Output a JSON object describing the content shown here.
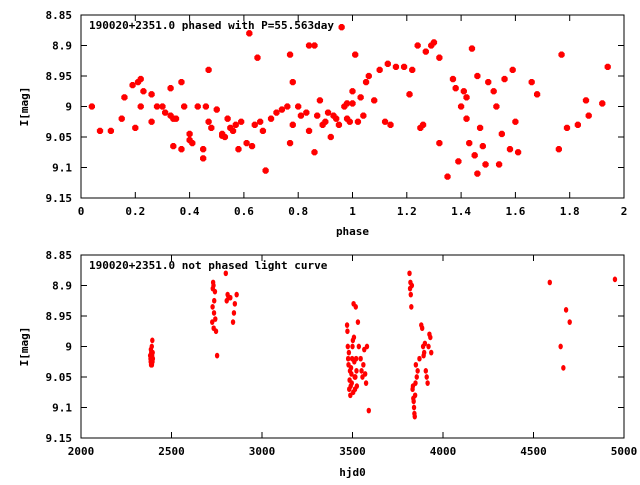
{
  "chart_data": [
    {
      "type": "scatter",
      "title": "190020+2351.0 phased with P=55.563day",
      "xlabel": "phase",
      "ylabel": "I[mag]",
      "xlim": [
        0,
        2
      ],
      "ylim": [
        9.15,
        8.85
      ],
      "y_inverted": true,
      "x_ticks": [
        "0",
        "0.2",
        "0.4",
        "0.6",
        "0.8",
        "1",
        "1.2",
        "1.4",
        "1.6",
        "1.8",
        "2"
      ],
      "y_ticks": [
        "8.85",
        "8.9",
        "8.95",
        "9",
        "9.05",
        "9.1",
        "9.15"
      ],
      "marker_color": "#ff0000",
      "grid": false,
      "points": [
        [
          0.04,
          9.0
        ],
        [
          0.07,
          9.04
        ],
        [
          0.11,
          9.04
        ],
        [
          0.15,
          9.02
        ],
        [
          0.16,
          8.985
        ],
        [
          0.19,
          8.965
        ],
        [
          0.2,
          9.035
        ],
        [
          0.21,
          8.96
        ],
        [
          0.22,
          8.955
        ],
        [
          0.22,
          9.0
        ],
        [
          0.23,
          8.975
        ],
        [
          0.26,
          8.98
        ],
        [
          0.26,
          9.025
        ],
        [
          0.28,
          9.0
        ],
        [
          0.3,
          9.0
        ],
        [
          0.31,
          9.01
        ],
        [
          0.33,
          8.97
        ],
        [
          0.33,
          9.015
        ],
        [
          0.34,
          9.02
        ],
        [
          0.34,
          9.065
        ],
        [
          0.35,
          9.02
        ],
        [
          0.37,
          8.96
        ],
        [
          0.37,
          9.07
        ],
        [
          0.38,
          9.0
        ],
        [
          0.4,
          9.045
        ],
        [
          0.4,
          9.055
        ],
        [
          0.41,
          9.06
        ],
        [
          0.43,
          9.0
        ],
        [
          0.45,
          9.07
        ],
        [
          0.45,
          9.085
        ],
        [
          0.46,
          9.0
        ],
        [
          0.47,
          8.94
        ],
        [
          0.47,
          9.025
        ],
        [
          0.48,
          9.035
        ],
        [
          0.5,
          9.005
        ],
        [
          0.52,
          9.045
        ],
        [
          0.52,
          9.048
        ],
        [
          0.53,
          9.05
        ],
        [
          0.54,
          9.02
        ],
        [
          0.55,
          9.035
        ],
        [
          0.56,
          9.04
        ],
        [
          0.57,
          9.03
        ],
        [
          0.58,
          9.07
        ],
        [
          0.59,
          9.025
        ],
        [
          0.61,
          9.06
        ],
        [
          0.62,
          8.88
        ],
        [
          0.63,
          9.065
        ],
        [
          0.64,
          9.03
        ],
        [
          0.65,
          8.92
        ],
        [
          0.66,
          9.025
        ],
        [
          0.67,
          9.04
        ],
        [
          0.68,
          9.105
        ],
        [
          0.7,
          9.02
        ],
        [
          0.72,
          9.01
        ],
        [
          0.74,
          9.005
        ],
        [
          0.76,
          9.0
        ],
        [
          0.77,
          8.915
        ],
        [
          0.77,
          9.06
        ],
        [
          0.78,
          8.96
        ],
        [
          0.78,
          9.03
        ],
        [
          0.8,
          9.0
        ],
        [
          0.81,
          9.015
        ],
        [
          0.83,
          9.01
        ],
        [
          0.84,
          9.04
        ],
        [
          0.84,
          8.9
        ],
        [
          0.86,
          8.9
        ],
        [
          0.86,
          9.075
        ],
        [
          0.87,
          9.015
        ],
        [
          0.88,
          8.99
        ],
        [
          0.89,
          9.03
        ],
        [
          0.9,
          9.025
        ],
        [
          0.91,
          9.01
        ],
        [
          0.92,
          9.05
        ],
        [
          0.93,
          9.015
        ],
        [
          0.94,
          9.02
        ],
        [
          0.95,
          9.03
        ],
        [
          0.96,
          8.87
        ],
        [
          0.97,
          9.0
        ],
        [
          0.98,
          8.995
        ],
        [
          0.98,
          9.02
        ],
        [
          0.99,
          9.025
        ],
        [
          1.0,
          8.975
        ],
        [
          1.0,
          8.995
        ],
        [
          1.01,
          8.915
        ],
        [
          1.02,
          9.025
        ],
        [
          1.03,
          8.985
        ],
        [
          1.04,
          9.015
        ],
        [
          1.05,
          8.96
        ],
        [
          1.06,
          8.95
        ],
        [
          1.08,
          8.99
        ],
        [
          1.1,
          8.94
        ],
        [
          1.12,
          9.025
        ],
        [
          1.13,
          8.93
        ],
        [
          1.14,
          9.03
        ],
        [
          1.16,
          8.935
        ],
        [
          1.19,
          8.935
        ],
        [
          1.21,
          8.98
        ],
        [
          1.22,
          8.94
        ],
        [
          1.24,
          8.9
        ],
        [
          1.25,
          9.035
        ],
        [
          1.26,
          9.03
        ],
        [
          1.27,
          8.91
        ],
        [
          1.29,
          8.9
        ],
        [
          1.3,
          8.895
        ],
        [
          1.32,
          9.06
        ],
        [
          1.32,
          8.92
        ],
        [
          1.35,
          9.115
        ],
        [
          1.37,
          8.955
        ],
        [
          1.38,
          8.97
        ],
        [
          1.39,
          9.09
        ],
        [
          1.4,
          9.0
        ],
        [
          1.41,
          8.975
        ],
        [
          1.42,
          8.985
        ],
        [
          1.42,
          9.02
        ],
        [
          1.43,
          9.06
        ],
        [
          1.44,
          8.905
        ],
        [
          1.45,
          9.08
        ],
        [
          1.46,
          9.11
        ],
        [
          1.46,
          8.95
        ],
        [
          1.47,
          9.035
        ],
        [
          1.48,
          9.065
        ],
        [
          1.49,
          9.095
        ],
        [
          1.5,
          8.96
        ],
        [
          1.52,
          8.975
        ],
        [
          1.53,
          9.0
        ],
        [
          1.54,
          9.095
        ],
        [
          1.55,
          9.045
        ],
        [
          1.56,
          8.955
        ],
        [
          1.58,
          9.07
        ],
        [
          1.59,
          8.94
        ],
        [
          1.6,
          9.025
        ],
        [
          1.61,
          9.075
        ],
        [
          1.66,
          8.96
        ],
        [
          1.68,
          8.98
        ],
        [
          1.76,
          9.07
        ],
        [
          1.77,
          8.915
        ],
        [
          1.79,
          9.035
        ],
        [
          1.83,
          9.03
        ],
        [
          1.86,
          8.99
        ],
        [
          1.87,
          9.015
        ],
        [
          1.92,
          8.995
        ],
        [
          1.94,
          8.935
        ]
      ]
    },
    {
      "type": "scatter",
      "title": "190020+2351.0 not phased light curve",
      "xlabel": "hjd0",
      "ylabel": "I[mag]",
      "xlim": [
        2000,
        5000
      ],
      "ylim": [
        9.15,
        8.85
      ],
      "y_inverted": true,
      "x_ticks": [
        "2000",
        "2500",
        "3000",
        "3500",
        "4000",
        "4500",
        "5000"
      ],
      "y_ticks": [
        "8.85",
        "8.9",
        "8.95",
        "9",
        "9.05",
        "9.1",
        "9.15"
      ],
      "marker_color": "#ff0000",
      "grid": false,
      "points": [
        [
          2382,
          9.015
        ],
        [
          2384,
          9.02
        ],
        [
          2385,
          9.025
        ],
        [
          2386,
          9.005
        ],
        [
          2387,
          9.03
        ],
        [
          2388,
          9.01
        ],
        [
          2389,
          9.025
        ],
        [
          2390,
          9.02
        ],
        [
          2391,
          9.0
        ],
        [
          2392,
          9.03
        ],
        [
          2393,
          9.015
        ],
        [
          2394,
          8.99
        ],
        [
          2395,
          9.025
        ],
        [
          2396,
          9.01
        ],
        [
          2397,
          9.02
        ],
        [
          2725,
          8.96
        ],
        [
          2727,
          8.935
        ],
        [
          2728,
          8.905
        ],
        [
          2730,
          8.895
        ],
        [
          2732,
          8.9
        ],
        [
          2733,
          8.97
        ],
        [
          2735,
          8.945
        ],
        [
          2736,
          8.925
        ],
        [
          2740,
          8.91
        ],
        [
          2742,
          8.955
        ],
        [
          2746,
          8.975
        ],
        [
          2752,
          9.015
        ],
        [
          2800,
          8.88
        ],
        [
          2805,
          8.925
        ],
        [
          2810,
          8.915
        ],
        [
          2815,
          8.92
        ],
        [
          2825,
          8.92
        ],
        [
          2840,
          8.96
        ],
        [
          2845,
          8.945
        ],
        [
          2850,
          8.93
        ],
        [
          2860,
          8.915
        ],
        [
          3470,
          8.965
        ],
        [
          3472,
          8.975
        ],
        [
          3474,
          9.0
        ],
        [
          3476,
          9.02
        ],
        [
          3478,
          9.03
        ],
        [
          3480,
          9.01
        ],
        [
          3482,
          9.07
        ],
        [
          3484,
          9.055
        ],
        [
          3486,
          9.04
        ],
        [
          3488,
          9.08
        ],
        [
          3490,
          9.065
        ],
        [
          3492,
          9.035
        ],
        [
          3494,
          9.045
        ],
        [
          3496,
          9.06
        ],
        [
          3498,
          9.02
        ],
        [
          3500,
          9.0
        ],
        [
          3502,
          8.99
        ],
        [
          3504,
          9.075
        ],
        [
          3506,
          8.93
        ],
        [
          3508,
          8.985
        ],
        [
          3510,
          9.025
        ],
        [
          3512,
          9.05
        ],
        [
          3514,
          9.07
        ],
        [
          3516,
          9.05
        ],
        [
          3518,
          8.935
        ],
        [
          3520,
          9.02
        ],
        [
          3522,
          9.04
        ],
        [
          3524,
          9.065
        ],
        [
          3530,
          8.96
        ],
        [
          3535,
          9.0
        ],
        [
          3545,
          9.02
        ],
        [
          3550,
          9.04
        ],
        [
          3555,
          9.05
        ],
        [
          3560,
          9.03
        ],
        [
          3565,
          9.005
        ],
        [
          3570,
          9.045
        ],
        [
          3575,
          9.06
        ],
        [
          3580,
          9.0
        ],
        [
          3590,
          9.105
        ],
        [
          3815,
          8.88
        ],
        [
          3818,
          8.905
        ],
        [
          3820,
          8.895
        ],
        [
          3822,
          8.915
        ],
        [
          3825,
          8.935
        ],
        [
          3828,
          8.9
        ],
        [
          3832,
          9.07
        ],
        [
          3834,
          9.065
        ],
        [
          3836,
          9.085
        ],
        [
          3838,
          9.09
        ],
        [
          3840,
          9.1
        ],
        [
          3842,
          9.11
        ],
        [
          3844,
          9.115
        ],
        [
          3846,
          9.08
        ],
        [
          3848,
          9.06
        ],
        [
          3850,
          9.03
        ],
        [
          3855,
          9.05
        ],
        [
          3860,
          9.04
        ],
        [
          3870,
          9.02
        ],
        [
          3880,
          8.965
        ],
        [
          3885,
          8.97
        ],
        [
          3890,
          9.0
        ],
        [
          3893,
          9.015
        ],
        [
          3896,
          9.01
        ],
        [
          3900,
          8.995
        ],
        [
          3905,
          9.04
        ],
        [
          3910,
          9.05
        ],
        [
          3915,
          9.06
        ],
        [
          3920,
          9.0
        ],
        [
          3925,
          8.98
        ],
        [
          3930,
          8.985
        ],
        [
          3935,
          9.01
        ],
        [
          4590,
          8.895
        ],
        [
          4650,
          9.0
        ],
        [
          4665,
          9.035
        ],
        [
          4680,
          8.94
        ],
        [
          4700,
          8.96
        ],
        [
          4950,
          8.89
        ]
      ]
    }
  ]
}
